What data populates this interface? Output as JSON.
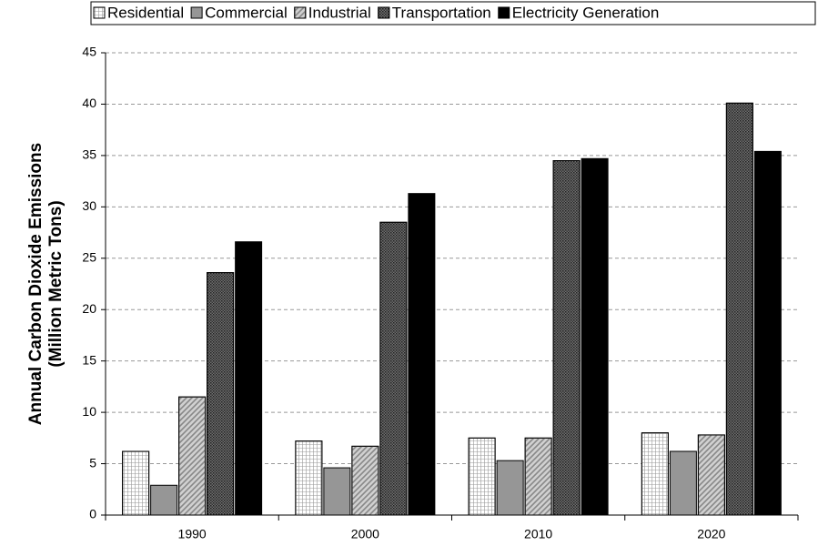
{
  "chart_data": {
    "type": "bar",
    "ylabel": [
      "Annual Carbon Dioxide Emissions",
      "(Million Metric Tons)"
    ],
    "categories": [
      "1990",
      "2000",
      "2010",
      "2020"
    ],
    "series": [
      {
        "name": "Residential",
        "color": "#ffffff",
        "values": [
          6.2,
          7.2,
          7.5,
          8.0
        ]
      },
      {
        "name": "Commercial",
        "color": "#969696",
        "values": [
          2.9,
          4.6,
          5.3,
          6.2
        ]
      },
      {
        "name": "Industrial",
        "color": "#d0d0d0",
        "values": [
          11.5,
          6.7,
          7.5,
          7.8
        ]
      },
      {
        "name": "Transportation",
        "color": "#707070",
        "values": [
          23.6,
          28.5,
          34.5,
          40.1
        ]
      },
      {
        "name": "Electricity Generation",
        "color": "#000000",
        "values": [
          26.6,
          31.3,
          34.7,
          35.4
        ]
      }
    ],
    "ylim": [
      0,
      45
    ],
    "yticks": [
      0,
      5,
      10,
      15,
      20,
      25,
      30,
      35,
      40,
      45
    ],
    "grid": true
  }
}
